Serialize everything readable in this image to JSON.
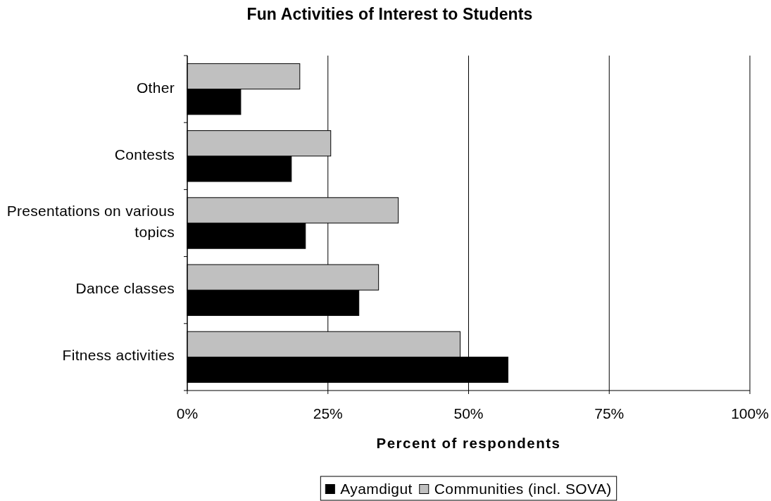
{
  "chart_data": {
    "type": "bar",
    "orientation": "horizontal",
    "title": "Fun Activities of Interest to Students",
    "xlabel": "Percent of respondents",
    "categories": [
      "Other",
      "Contests",
      "Presentations on various topics",
      "Dance classes",
      "Fitness activities"
    ],
    "series": [
      {
        "name": "Ayamdigut",
        "color": "#000000",
        "values": [
          9.5,
          18.5,
          21,
          30.5,
          57
        ]
      },
      {
        "name": "Communities (incl. SOVA)",
        "color": "#c0c0c0",
        "values": [
          20,
          25.5,
          37.5,
          34,
          48.5
        ]
      }
    ],
    "xlim": [
      0,
      100
    ],
    "xticks": [
      {
        "value": 0,
        "label": "0%"
      },
      {
        "value": 25,
        "label": "25%"
      },
      {
        "value": 50,
        "label": "50%"
      },
      {
        "value": 75,
        "label": "75%"
      },
      {
        "value": 100,
        "label": "100%"
      }
    ],
    "grid": "x",
    "legend": "bottom"
  }
}
